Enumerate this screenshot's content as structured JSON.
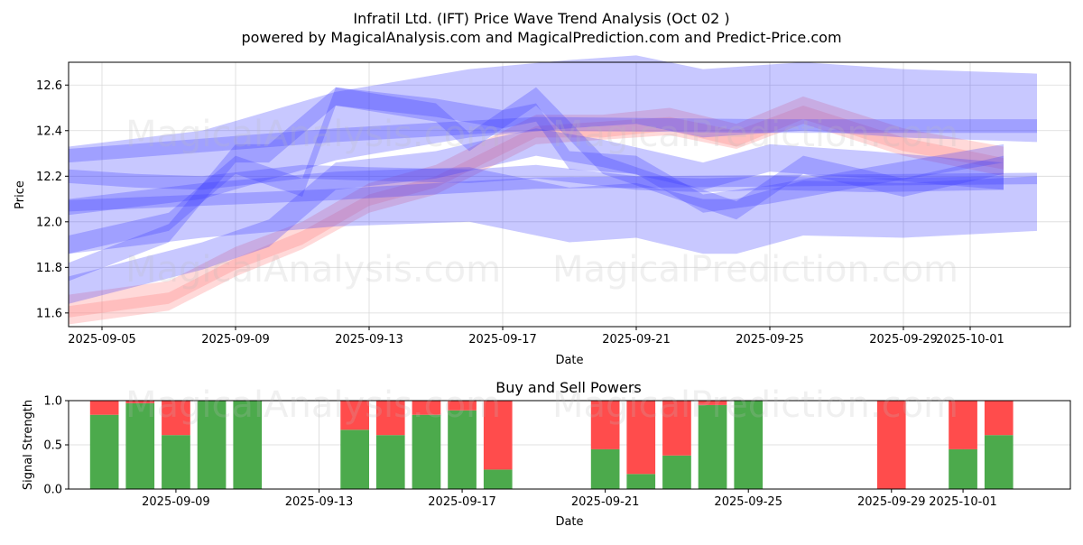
{
  "chart_data": [
    {
      "type": "line",
      "title": "Infratil Ltd. (IFT) Price Wave Trend Analysis (Oct 02 )",
      "subtitle": "powered by MagicalAnalysis.com and MagicalPrediction.com and Predict-Price.com",
      "xlabel": "Date",
      "ylabel": "Price",
      "x_ticks": [
        "2025-09-05",
        "2025-09-09",
        "2025-09-13",
        "2025-09-17",
        "2025-09-21",
        "2025-09-25",
        "2025-09-29",
        "2025-10-01"
      ],
      "y_ticks": [
        "11.6",
        "11.8",
        "12.0",
        "12.2",
        "12.4",
        "12.6"
      ],
      "ylim": [
        11.54,
        12.7
      ],
      "xlim": [
        "2025-09-04",
        "2025-10-04"
      ],
      "grid": true,
      "watermarks": [
        "MagicalAnalysis.com",
        "MagicalPrediction.com"
      ],
      "colors": {
        "blue": "#3b3bff",
        "red": "#ff8080"
      },
      "series": [
        {
          "color": "red",
          "band": 0.05,
          "x": [
            "2025-09-04",
            "2025-09-07",
            "2025-09-09",
            "2025-09-11",
            "2025-09-13",
            "2025-09-15",
            "2025-09-18",
            "2025-09-20",
            "2025-09-22",
            "2025-09-24",
            "2025-09-26",
            "2025-09-29",
            "2025-10-02"
          ],
          "y": [
            11.63,
            11.69,
            11.84,
            11.95,
            12.12,
            12.2,
            12.42,
            12.42,
            12.45,
            12.38,
            12.5,
            12.36,
            12.28
          ]
        },
        {
          "color": "red",
          "band": 0.04,
          "x": [
            "2025-09-04",
            "2025-09-07",
            "2025-09-09",
            "2025-09-11",
            "2025-09-13",
            "2025-09-15",
            "2025-09-18",
            "2025-09-20",
            "2025-09-22",
            "2025-09-24",
            "2025-09-26",
            "2025-09-29",
            "2025-10-02"
          ],
          "y": [
            11.59,
            11.65,
            11.8,
            11.92,
            12.08,
            12.16,
            12.38,
            12.4,
            12.42,
            12.36,
            12.47,
            12.33,
            12.24
          ]
        },
        {
          "color": "blue",
          "band": 0.03,
          "x": [
            "2025-09-04",
            "2025-09-12",
            "2025-09-18",
            "2025-09-25",
            "2025-10-03"
          ],
          "y": [
            12.29,
            12.38,
            12.43,
            12.42,
            12.42
          ]
        },
        {
          "color": "blue",
          "band": 0.025,
          "x": [
            "2025-09-04",
            "2025-09-12",
            "2025-09-18",
            "2025-09-25",
            "2025-10-03"
          ],
          "y": [
            12.07,
            12.12,
            12.17,
            12.18,
            12.19
          ]
        },
        {
          "color": "blue",
          "band": 0.03,
          "x": [
            "2025-09-04",
            "2025-09-06",
            "2025-09-08",
            "2025-09-11",
            "2025-09-13",
            "2025-09-16",
            "2025-09-18",
            "2025-09-21",
            "2025-09-23",
            "2025-09-25",
            "2025-09-28",
            "2025-10-02"
          ],
          "y": [
            12.2,
            12.18,
            12.17,
            12.22,
            12.21,
            12.2,
            12.22,
            12.17,
            12.16,
            12.17,
            12.16,
            12.17
          ]
        },
        {
          "color": "blue",
          "band": 0.04,
          "x": [
            "2025-09-04",
            "2025-09-07",
            "2025-09-09",
            "2025-09-11",
            "2025-09-12",
            "2025-09-15",
            "2025-09-17",
            "2025-09-18",
            "2025-09-19",
            "2025-09-21",
            "2025-09-23",
            "2025-09-25",
            "2025-09-28",
            "2025-10-02"
          ],
          "y": [
            11.9,
            12.0,
            12.25,
            12.15,
            12.55,
            12.5,
            12.45,
            12.48,
            12.27,
            12.25,
            12.08,
            12.12,
            12.2,
            12.3
          ]
        },
        {
          "color": "blue",
          "band": 0.04,
          "x": [
            "2025-09-04",
            "2025-09-07",
            "2025-09-09",
            "2025-09-10",
            "2025-09-12",
            "2025-09-15",
            "2025-09-16",
            "2025-09-18",
            "2025-09-20",
            "2025-09-23",
            "2025-09-24",
            "2025-09-26",
            "2025-09-29",
            "2025-10-02"
          ],
          "y": [
            11.78,
            11.95,
            12.3,
            12.3,
            12.55,
            12.48,
            12.35,
            12.55,
            12.25,
            12.1,
            12.05,
            12.25,
            12.15,
            12.25
          ]
        },
        {
          "color": "blue",
          "band": 0.15,
          "x": [
            "2025-09-04",
            "2025-09-08",
            "2025-09-12",
            "2025-09-16",
            "2025-09-19",
            "2025-09-21",
            "2025-09-23",
            "2025-09-25",
            "2025-09-26",
            "2025-09-29",
            "2025-10-03"
          ],
          "y": [
            12.18,
            12.25,
            12.42,
            12.52,
            12.56,
            12.58,
            12.52,
            12.54,
            12.55,
            12.52,
            12.5
          ]
        },
        {
          "color": "blue",
          "band": 0.12,
          "x": [
            "2025-09-04",
            "2025-09-08",
            "2025-09-12",
            "2025-09-16",
            "2025-09-19",
            "2025-09-21",
            "2025-09-23",
            "2025-09-24",
            "2025-09-26",
            "2025-09-29",
            "2025-10-03"
          ],
          "y": [
            11.98,
            12.05,
            12.1,
            12.12,
            12.03,
            12.05,
            11.98,
            11.98,
            12.06,
            12.05,
            12.08
          ]
        },
        {
          "color": "blue",
          "band": 0.06,
          "x": [
            "2025-09-04",
            "2025-09-08",
            "2025-09-10",
            "2025-09-12",
            "2025-09-15",
            "2025-09-18",
            "2025-09-20",
            "2025-09-23",
            "2025-09-25",
            "2025-09-28",
            "2025-10-02"
          ],
          "y": [
            11.7,
            11.85,
            11.95,
            12.2,
            12.25,
            12.35,
            12.3,
            12.2,
            12.28,
            12.25,
            12.2
          ]
        }
      ]
    },
    {
      "type": "bar",
      "title": "Buy and Sell Powers",
      "xlabel": "Date",
      "ylabel": "Signal Strength",
      "x_ticks": [
        "2025-09-09",
        "2025-09-13",
        "2025-09-17",
        "2025-09-21",
        "2025-09-25",
        "2025-09-29",
        "2025-10-01"
      ],
      "y_ticks": [
        "0.0",
        "0.5",
        "1.0"
      ],
      "ylim": [
        0,
        1
      ],
      "xlim": [
        "2025-09-06",
        "2025-10-04"
      ],
      "grid": true,
      "colors": {
        "buy": "#4caa4c",
        "sell": "#ff4c4c"
      },
      "x": [
        "2025-09-07",
        "2025-09-08",
        "2025-09-09",
        "2025-09-10",
        "2025-09-11",
        "2025-09-14",
        "2025-09-15",
        "2025-09-16",
        "2025-09-17",
        "2025-09-18",
        "2025-09-21",
        "2025-09-22",
        "2025-09-23",
        "2025-09-24",
        "2025-09-25",
        "2025-09-29",
        "2025-10-01",
        "2025-10-02"
      ],
      "series": [
        {
          "kind": "buy",
          "values": [
            0.84,
            0.97,
            0.61,
            1.0,
            1.0,
            0.67,
            0.61,
            0.84,
            0.89,
            0.22,
            0.45,
            0.17,
            0.38,
            0.95,
            1.0,
            0.0,
            0.45,
            0.61
          ]
        },
        {
          "kind": "sell",
          "values": [
            0.16,
            0.03,
            0.39,
            0.0,
            0.0,
            0.33,
            0.39,
            0.16,
            0.11,
            0.78,
            0.55,
            0.83,
            0.62,
            0.05,
            0.0,
            1.0,
            0.55,
            0.39
          ]
        }
      ]
    }
  ]
}
